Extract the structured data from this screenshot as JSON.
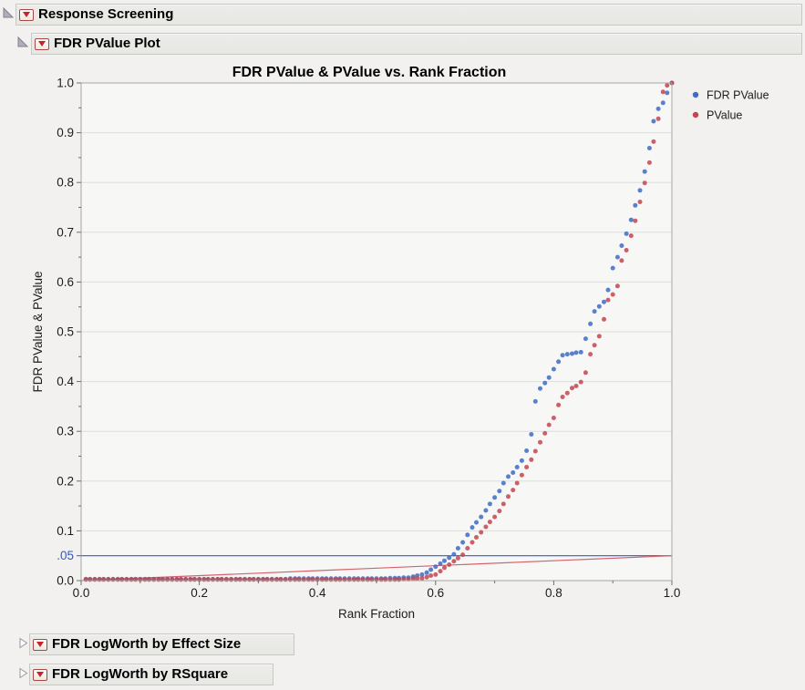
{
  "outline": {
    "response_screening": {
      "label": "Response Screening",
      "expanded": true
    },
    "fdr_pvalue_plot": {
      "label": "FDR PValue Plot",
      "expanded": true
    },
    "fdr_logworth_effect": {
      "label": "FDR LogWorth by Effect Size",
      "expanded": false
    },
    "fdr_logworth_rsquare": {
      "label": "FDR LogWorth by RSquare",
      "expanded": false
    }
  },
  "chart_data": {
    "type": "scatter",
    "title": "FDR PValue & PValue vs. Rank Fraction",
    "xlabel": "Rank Fraction",
    "ylabel": "FDR PValue & PValue",
    "xlim": [
      0,
      1
    ],
    "ylim": [
      0,
      1
    ],
    "grid": "horizontal",
    "colors": {
      "plot_bg": "#f7f7f5",
      "frame": "#a6a6a3",
      "grid": "#dededc",
      "axis": "#6e6e6c",
      "text": "#1c1c1c",
      "fdr_blue": "#3d6bc5",
      "pvalue_red": "#c4454f",
      "ref_blue": "#2f5bd6",
      "ref_red": "#d5626c",
      "alpha_label_blue": "#3156c8"
    },
    "x_axis": {
      "major": [
        {
          "v": 0.0,
          "label": "0.0"
        },
        {
          "v": 0.2,
          "label": "0.2"
        },
        {
          "v": 0.4,
          "label": "0.4"
        },
        {
          "v": 0.6,
          "label": "0.6"
        },
        {
          "v": 0.8,
          "label": "0.8"
        },
        {
          "v": 1.0,
          "label": "1.0"
        }
      ],
      "minor": [
        0.1,
        0.3,
        0.5,
        0.7,
        0.9
      ]
    },
    "y_axis": {
      "major": [
        {
          "v": 0.0,
          "label": "0.0"
        },
        {
          "v": 0.1,
          "label": "0.1"
        },
        {
          "v": 0.2,
          "label": "0.2"
        },
        {
          "v": 0.3,
          "label": "0.3"
        },
        {
          "v": 0.4,
          "label": "0.4"
        },
        {
          "v": 0.5,
          "label": "0.5"
        },
        {
          "v": 0.6,
          "label": "0.6"
        },
        {
          "v": 0.7,
          "label": "0.7"
        },
        {
          "v": 0.8,
          "label": "0.8"
        },
        {
          "v": 0.9,
          "label": "0.9"
        },
        {
          "v": 1.0,
          "label": "1.0"
        },
        {
          "v": 0.05,
          "label": ".05",
          "color": "#3156c8"
        }
      ],
      "minor": [
        0.15,
        0.25,
        0.35,
        0.45,
        0.55,
        0.65,
        0.75,
        0.85,
        0.95
      ],
      "grid": [
        0.1,
        0.2,
        0.3,
        0.4,
        0.5,
        0.6,
        0.7,
        0.8,
        0.9
      ]
    },
    "ref_lines": [
      {
        "type": "horizontal",
        "y": 0.05,
        "color": "#2f5bd6",
        "meaning": "alpha 0.05 line"
      },
      {
        "type": "segment",
        "from": [
          0,
          0
        ],
        "to": [
          1,
          0.05
        ],
        "color": "#d5626c",
        "meaning": "p = alpha x rank fraction line"
      }
    ],
    "legend": {
      "position": "right",
      "entries": [
        {
          "label": "FDR PValue",
          "color": "#3d6bc5"
        },
        {
          "label": "PValue",
          "color": "#c4454f"
        }
      ]
    },
    "series": [
      {
        "name": "FDR PValue",
        "color": "#3d6bc5",
        "points": [
          [
            0.008,
            0.003
          ],
          [
            0.015,
            0.003
          ],
          [
            0.023,
            0.003
          ],
          [
            0.031,
            0.003
          ],
          [
            0.038,
            0.003
          ],
          [
            0.046,
            0.003
          ],
          [
            0.054,
            0.003
          ],
          [
            0.062,
            0.003
          ],
          [
            0.069,
            0.003
          ],
          [
            0.077,
            0.003
          ],
          [
            0.085,
            0.003
          ],
          [
            0.092,
            0.003
          ],
          [
            0.1,
            0.003
          ],
          [
            0.108,
            0.003
          ],
          [
            0.115,
            0.003
          ],
          [
            0.123,
            0.003
          ],
          [
            0.131,
            0.003
          ],
          [
            0.138,
            0.003
          ],
          [
            0.146,
            0.003
          ],
          [
            0.154,
            0.003
          ],
          [
            0.162,
            0.003
          ],
          [
            0.169,
            0.003
          ],
          [
            0.177,
            0.003
          ],
          [
            0.185,
            0.003
          ],
          [
            0.192,
            0.003
          ],
          [
            0.2,
            0.003
          ],
          [
            0.208,
            0.003
          ],
          [
            0.215,
            0.003
          ],
          [
            0.223,
            0.003
          ],
          [
            0.231,
            0.003
          ],
          [
            0.238,
            0.003
          ],
          [
            0.246,
            0.003
          ],
          [
            0.254,
            0.003
          ],
          [
            0.262,
            0.003
          ],
          [
            0.269,
            0.003
          ],
          [
            0.277,
            0.003
          ],
          [
            0.285,
            0.003
          ],
          [
            0.292,
            0.003
          ],
          [
            0.3,
            0.003
          ],
          [
            0.308,
            0.003
          ],
          [
            0.315,
            0.003
          ],
          [
            0.323,
            0.003
          ],
          [
            0.331,
            0.003
          ],
          [
            0.338,
            0.003
          ],
          [
            0.346,
            0.003
          ],
          [
            0.354,
            0.004
          ],
          [
            0.362,
            0.004
          ],
          [
            0.369,
            0.004
          ],
          [
            0.377,
            0.004
          ],
          [
            0.385,
            0.004
          ],
          [
            0.392,
            0.004
          ],
          [
            0.4,
            0.004
          ],
          [
            0.408,
            0.004
          ],
          [
            0.415,
            0.004
          ],
          [
            0.423,
            0.004
          ],
          [
            0.431,
            0.004
          ],
          [
            0.438,
            0.004
          ],
          [
            0.446,
            0.004
          ],
          [
            0.454,
            0.004
          ],
          [
            0.462,
            0.004
          ],
          [
            0.469,
            0.004
          ],
          [
            0.477,
            0.004
          ],
          [
            0.485,
            0.004
          ],
          [
            0.492,
            0.004
          ],
          [
            0.5,
            0.004
          ],
          [
            0.508,
            0.004
          ],
          [
            0.515,
            0.004
          ],
          [
            0.523,
            0.005
          ],
          [
            0.531,
            0.005
          ],
          [
            0.538,
            0.005
          ],
          [
            0.546,
            0.006
          ],
          [
            0.554,
            0.006
          ],
          [
            0.562,
            0.008
          ],
          [
            0.569,
            0.01
          ],
          [
            0.577,
            0.012
          ],
          [
            0.585,
            0.016
          ],
          [
            0.592,
            0.022
          ],
          [
            0.6,
            0.028
          ],
          [
            0.608,
            0.034
          ],
          [
            0.615,
            0.04
          ],
          [
            0.623,
            0.046
          ],
          [
            0.631,
            0.053
          ],
          [
            0.638,
            0.065
          ],
          [
            0.646,
            0.077
          ],
          [
            0.654,
            0.092
          ],
          [
            0.662,
            0.107
          ],
          [
            0.669,
            0.117
          ],
          [
            0.677,
            0.128
          ],
          [
            0.685,
            0.141
          ],
          [
            0.692,
            0.154
          ],
          [
            0.7,
            0.167
          ],
          [
            0.708,
            0.18
          ],
          [
            0.715,
            0.196
          ],
          [
            0.723,
            0.209
          ],
          [
            0.731,
            0.217
          ],
          [
            0.738,
            0.228
          ],
          [
            0.746,
            0.241
          ],
          [
            0.754,
            0.261
          ],
          [
            0.762,
            0.294
          ],
          [
            0.769,
            0.36
          ],
          [
            0.777,
            0.386
          ],
          [
            0.785,
            0.397
          ],
          [
            0.792,
            0.408
          ],
          [
            0.8,
            0.425
          ],
          [
            0.808,
            0.44
          ],
          [
            0.815,
            0.453
          ],
          [
            0.823,
            0.455
          ],
          [
            0.831,
            0.456
          ],
          [
            0.838,
            0.458
          ],
          [
            0.846,
            0.459
          ],
          [
            0.854,
            0.486
          ],
          [
            0.862,
            0.516
          ],
          [
            0.869,
            0.541
          ],
          [
            0.877,
            0.551
          ],
          [
            0.885,
            0.56
          ],
          [
            0.892,
            0.584
          ],
          [
            0.9,
            0.628
          ],
          [
            0.908,
            0.65
          ],
          [
            0.915,
            0.673
          ],
          [
            0.923,
            0.697
          ],
          [
            0.931,
            0.725
          ],
          [
            0.938,
            0.754
          ],
          [
            0.946,
            0.784
          ],
          [
            0.954,
            0.822
          ],
          [
            0.962,
            0.869
          ],
          [
            0.969,
            0.923
          ],
          [
            0.977,
            0.948
          ],
          [
            0.985,
            0.96
          ],
          [
            0.992,
            0.98
          ],
          [
            1.0,
            1.0
          ]
        ]
      },
      {
        "name": "PValue",
        "color": "#c4454f",
        "points": [
          [
            0.008,
            0.002
          ],
          [
            0.015,
            0.002
          ],
          [
            0.023,
            0.002
          ],
          [
            0.031,
            0.002
          ],
          [
            0.038,
            0.002
          ],
          [
            0.046,
            0.002
          ],
          [
            0.054,
            0.002
          ],
          [
            0.062,
            0.002
          ],
          [
            0.069,
            0.002
          ],
          [
            0.077,
            0.002
          ],
          [
            0.085,
            0.002
          ],
          [
            0.092,
            0.002
          ],
          [
            0.1,
            0.002
          ],
          [
            0.108,
            0.002
          ],
          [
            0.115,
            0.002
          ],
          [
            0.123,
            0.002
          ],
          [
            0.131,
            0.002
          ],
          [
            0.138,
            0.002
          ],
          [
            0.146,
            0.002
          ],
          [
            0.154,
            0.002
          ],
          [
            0.162,
            0.002
          ],
          [
            0.169,
            0.002
          ],
          [
            0.177,
            0.002
          ],
          [
            0.185,
            0.002
          ],
          [
            0.192,
            0.002
          ],
          [
            0.2,
            0.002
          ],
          [
            0.208,
            0.002
          ],
          [
            0.215,
            0.002
          ],
          [
            0.223,
            0.002
          ],
          [
            0.231,
            0.002
          ],
          [
            0.238,
            0.002
          ],
          [
            0.246,
            0.002
          ],
          [
            0.254,
            0.002
          ],
          [
            0.262,
            0.002
          ],
          [
            0.269,
            0.002
          ],
          [
            0.277,
            0.002
          ],
          [
            0.285,
            0.002
          ],
          [
            0.292,
            0.002
          ],
          [
            0.3,
            0.002
          ],
          [
            0.308,
            0.002
          ],
          [
            0.315,
            0.002
          ],
          [
            0.323,
            0.002
          ],
          [
            0.331,
            0.002
          ],
          [
            0.338,
            0.002
          ],
          [
            0.346,
            0.002
          ],
          [
            0.354,
            0.002
          ],
          [
            0.362,
            0.002
          ],
          [
            0.369,
            0.002
          ],
          [
            0.377,
            0.002
          ],
          [
            0.385,
            0.002
          ],
          [
            0.392,
            0.002
          ],
          [
            0.4,
            0.002
          ],
          [
            0.408,
            0.002
          ],
          [
            0.415,
            0.002
          ],
          [
            0.423,
            0.002
          ],
          [
            0.431,
            0.002
          ],
          [
            0.438,
            0.002
          ],
          [
            0.446,
            0.002
          ],
          [
            0.454,
            0.002
          ],
          [
            0.462,
            0.002
          ],
          [
            0.469,
            0.002
          ],
          [
            0.477,
            0.002
          ],
          [
            0.485,
            0.002
          ],
          [
            0.492,
            0.002
          ],
          [
            0.5,
            0.002
          ],
          [
            0.508,
            0.002
          ],
          [
            0.515,
            0.002
          ],
          [
            0.523,
            0.002
          ],
          [
            0.531,
            0.002
          ],
          [
            0.538,
            0.002
          ],
          [
            0.546,
            0.003
          ],
          [
            0.554,
            0.003
          ],
          [
            0.562,
            0.004
          ],
          [
            0.569,
            0.004
          ],
          [
            0.577,
            0.005
          ],
          [
            0.585,
            0.007
          ],
          [
            0.592,
            0.01
          ],
          [
            0.6,
            0.012
          ],
          [
            0.608,
            0.019
          ],
          [
            0.615,
            0.026
          ],
          [
            0.623,
            0.032
          ],
          [
            0.631,
            0.039
          ],
          [
            0.638,
            0.045
          ],
          [
            0.646,
            0.052
          ],
          [
            0.654,
            0.065
          ],
          [
            0.662,
            0.077
          ],
          [
            0.669,
            0.087
          ],
          [
            0.677,
            0.097
          ],
          [
            0.685,
            0.108
          ],
          [
            0.692,
            0.118
          ],
          [
            0.7,
            0.128
          ],
          [
            0.708,
            0.14
          ],
          [
            0.715,
            0.154
          ],
          [
            0.723,
            0.169
          ],
          [
            0.731,
            0.182
          ],
          [
            0.738,
            0.196
          ],
          [
            0.746,
            0.212
          ],
          [
            0.754,
            0.228
          ],
          [
            0.762,
            0.243
          ],
          [
            0.769,
            0.26
          ],
          [
            0.777,
            0.278
          ],
          [
            0.785,
            0.296
          ],
          [
            0.792,
            0.313
          ],
          [
            0.8,
            0.327
          ],
          [
            0.808,
            0.353
          ],
          [
            0.815,
            0.369
          ],
          [
            0.823,
            0.377
          ],
          [
            0.831,
            0.387
          ],
          [
            0.838,
            0.391
          ],
          [
            0.846,
            0.399
          ],
          [
            0.854,
            0.418
          ],
          [
            0.862,
            0.455
          ],
          [
            0.869,
            0.473
          ],
          [
            0.877,
            0.491
          ],
          [
            0.885,
            0.525
          ],
          [
            0.892,
            0.564
          ],
          [
            0.9,
            0.575
          ],
          [
            0.908,
            0.592
          ],
          [
            0.915,
            0.643
          ],
          [
            0.923,
            0.664
          ],
          [
            0.931,
            0.693
          ],
          [
            0.938,
            0.723
          ],
          [
            0.946,
            0.761
          ],
          [
            0.954,
            0.799
          ],
          [
            0.962,
            0.84
          ],
          [
            0.969,
            0.882
          ],
          [
            0.977,
            0.928
          ],
          [
            0.985,
            0.982
          ],
          [
            0.992,
            0.995
          ],
          [
            1.0,
            1.0
          ]
        ]
      }
    ]
  }
}
